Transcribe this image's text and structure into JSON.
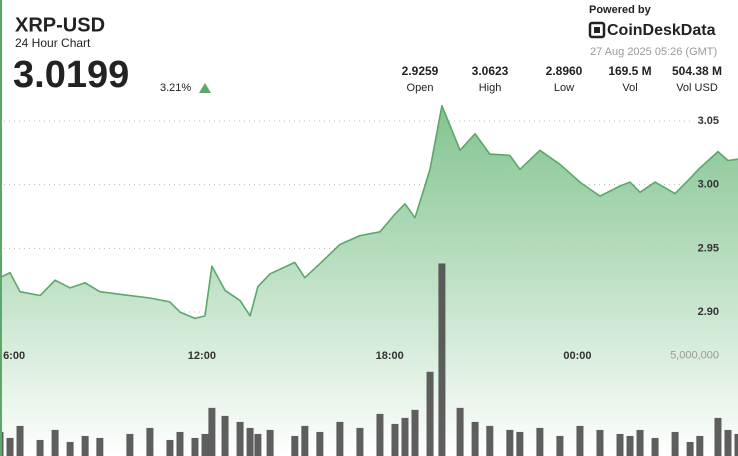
{
  "header": {
    "symbol": "XRP-USD",
    "subtitle": "24 Hour Chart",
    "price": "3.0199",
    "change": "3.21%",
    "powered_by": "Powered by",
    "brand": "CoinDeskData",
    "timestamp": "27 Aug 2025 05:26 (GMT)",
    "stats": [
      {
        "value": "2.9259",
        "label": "Open"
      },
      {
        "value": "3.0623",
        "label": "High"
      },
      {
        "value": "2.8960",
        "label": "Low"
      },
      {
        "value": "169.5 M",
        "label": "Vol"
      },
      {
        "value": "504.38 M",
        "label": "Vol USD"
      }
    ]
  },
  "chart_data": {
    "type": "area",
    "x": [
      5.55,
      5.87,
      6.19,
      6.83,
      7.31,
      7.79,
      8.27,
      8.74,
      9.7,
      10.34,
      10.98,
      11.3,
      11.78,
      12.1,
      12.32,
      12.74,
      13.22,
      13.54,
      13.79,
      14.18,
      14.97,
      15.29,
      15.77,
      16.41,
      17.05,
      17.69,
      18.17,
      18.49,
      18.81,
      19.29,
      19.67,
      20.25,
      20.73,
      21.2,
      21.84,
      22.16,
      22.8,
      23.44,
      24.08,
      24.72,
      25.36,
      25.68,
      26.0,
      26.48,
      27.12,
      27.6,
      27.91,
      28.49,
      28.81,
      29.13
    ],
    "series": [
      {
        "color": "#5aa86a",
        "values": [
          2.927,
          2.931,
          2.916,
          2.913,
          2.925,
          2.919,
          2.923,
          2.916,
          2.913,
          2.911,
          2.908,
          2.9,
          2.895,
          2.897,
          2.936,
          2.917,
          2.909,
          2.897,
          2.92,
          2.93,
          2.939,
          2.927,
          2.938,
          2.953,
          2.96,
          2.963,
          2.977,
          2.985,
          2.974,
          3.012,
          3.062,
          3.027,
          3.04,
          3.024,
          3.023,
          3.012,
          3.027,
          3.016,
          3.002,
          2.991,
          2.999,
          3.002,
          2.994,
          3.002,
          2.993,
          3.005,
          3.013,
          3.026,
          3.019,
          3.02
        ]
      },
      {
        "type": "bar",
        "axis": "y2",
        "color": "#4d4d4d",
        "values": [
          1200000,
          900000,
          1500000,
          800000,
          1300000,
          700000,
          1000000,
          900000,
          1100000,
          1400000,
          800000,
          1200000,
          900000,
          1100000,
          2400000,
          2000000,
          1700000,
          1400000,
          1100000,
          1300000,
          1000000,
          1500000,
          1200000,
          1700000,
          1400000,
          2100000,
          1600000,
          1900000,
          2300000,
          4200000,
          9600000,
          2400000,
          1700000,
          1500000,
          1300000,
          1200000,
          1400000,
          1000000,
          1500000,
          1300000,
          1100000,
          1000000,
          1300000,
          900000,
          1200000,
          700000,
          1000000,
          1900000,
          1300000,
          1100000
        ]
      }
    ],
    "xlim": [
      5.55,
      29.13
    ],
    "xticks": [
      {
        "value": 6,
        "label": "6:00"
      },
      {
        "value": 12,
        "label": "12:00"
      },
      {
        "value": 18,
        "label": "18:00"
      },
      {
        "value": 24,
        "label": "00:00"
      }
    ],
    "ylim": [
      2.787,
      3.0704
    ],
    "yticks": [
      {
        "value": 2.9,
        "label": "2.90"
      },
      2.95,
      {
        "value": 3,
        "label": "3.00"
      },
      3.05
    ],
    "y2lim": [
      0,
      18000000
    ],
    "y2ticks": [
      {
        "value": 5000000,
        "label": "5,000,000"
      }
    ],
    "grid": true
  }
}
